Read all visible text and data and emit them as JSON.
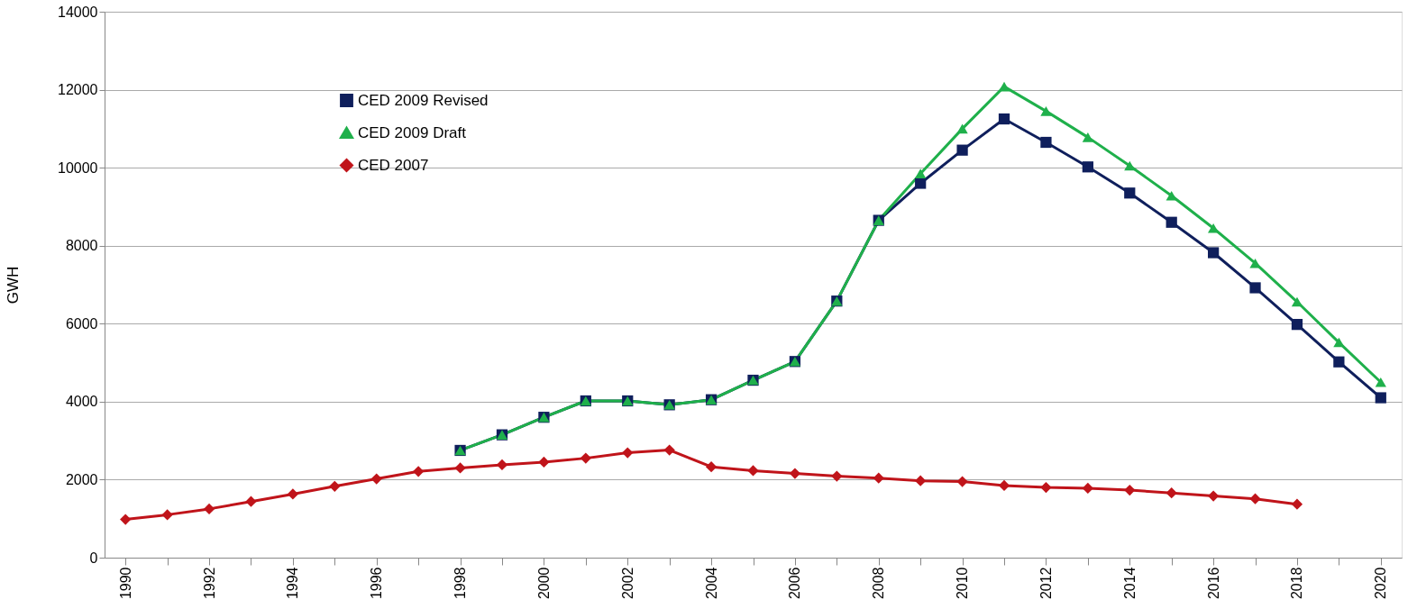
{
  "chart_data": {
    "type": "line",
    "ylabel": "GWH",
    "categories": [
      "1990",
      null,
      "1992",
      null,
      "1994",
      null,
      "1996",
      null,
      "1998",
      null,
      "2000",
      null,
      "2002",
      null,
      "2004",
      null,
      "2006",
      null,
      "2008",
      null,
      "2010",
      null,
      "2012",
      null,
      "2014",
      null,
      "2016",
      null,
      "2018",
      null,
      "2020"
    ],
    "ylim": [
      0,
      14000
    ],
    "yticks": [
      0,
      2000,
      4000,
      6000,
      8000,
      10000,
      12000,
      14000
    ],
    "grid": "y",
    "legend": "top left",
    "series": [
      {
        "name": "CED 2009 Revised",
        "color": "#0f1f5c",
        "marker": "square",
        "values": [
          null,
          null,
          null,
          null,
          null,
          null,
          null,
          null,
          2750,
          3150,
          3600,
          4020,
          4020,
          3920,
          4050,
          4550,
          5030,
          6580,
          8650,
          9600,
          10450,
          11250,
          10650,
          10020,
          9350,
          8600,
          7820,
          6920,
          5980,
          5020,
          4100
        ]
      },
      {
        "name": "CED 2009 Draft",
        "color": "#1fb04b",
        "marker": "triangle",
        "values": [
          null,
          null,
          null,
          null,
          null,
          null,
          null,
          null,
          2750,
          3150,
          3600,
          4020,
          4020,
          3920,
          4050,
          4550,
          5030,
          6580,
          8650,
          9850,
          11000,
          12080,
          11450,
          10780,
          10050,
          9280,
          8450,
          7550,
          6560,
          5520,
          4500
        ]
      },
      {
        "name": "CED 2007",
        "color": "#c0141a",
        "marker": "diamond",
        "values": [
          980,
          1100,
          1250,
          1440,
          1630,
          1830,
          2020,
          2210,
          2300,
          2380,
          2450,
          2550,
          2690,
          2760,
          2330,
          2230,
          2160,
          2090,
          2040,
          1970,
          1950,
          1850,
          1800,
          1780,
          1730,
          1660,
          1580,
          1510,
          1370,
          null,
          null
        ]
      }
    ]
  }
}
